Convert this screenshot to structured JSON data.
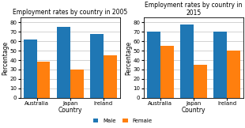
{
  "chart_data": [
    {
      "type": "bar",
      "title": "Employment rates by country in 2005",
      "categories": [
        "Australia",
        "Japan",
        "Ireland"
      ],
      "series": [
        {
          "name": "Male",
          "values": [
            62,
            75,
            68
          ]
        },
        {
          "name": "Female",
          "values": [
            38,
            30,
            45
          ]
        }
      ],
      "xlabel": "Country",
      "ylabel": "Percentage",
      "ylim": [
        0,
        85
      ],
      "yticks": [
        0,
        10,
        20,
        30,
        40,
        50,
        60,
        70,
        80
      ],
      "grid": true
    },
    {
      "type": "bar",
      "title": "Employment rates by country in 2015",
      "categories": [
        "Australia",
        "Japan",
        "Ireland"
      ],
      "series": [
        {
          "name": "Male",
          "values": [
            70,
            78,
            70
          ]
        },
        {
          "name": "Female",
          "values": [
            55,
            35,
            50
          ]
        }
      ],
      "xlabel": "Country",
      "ylabel": "Percentage",
      "ylim": [
        0,
        85
      ],
      "yticks": [
        0,
        10,
        20,
        30,
        40,
        50,
        60,
        70,
        80
      ],
      "grid": true
    }
  ]
}
